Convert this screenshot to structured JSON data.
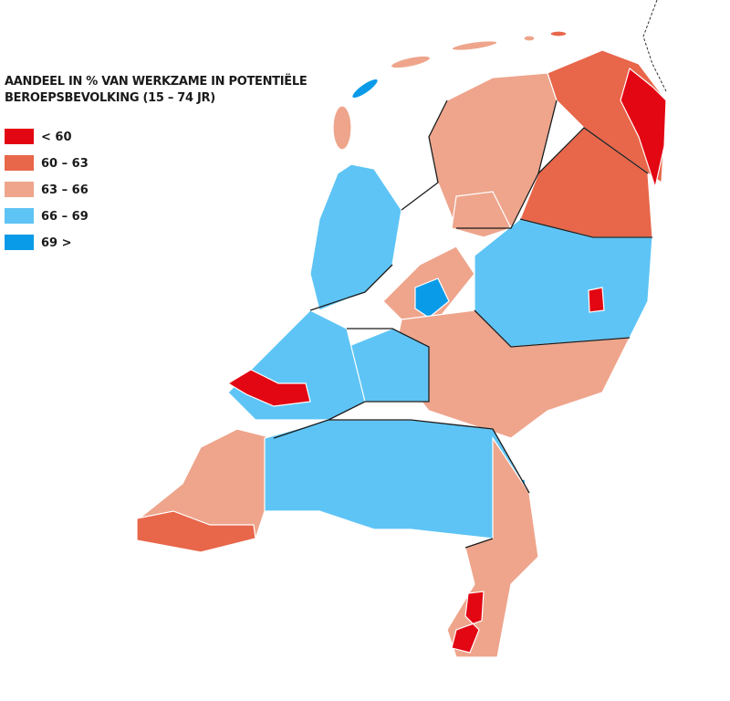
{
  "title_lines": [
    "AANDEEL IN % VAN WERKZAME IN POTENTIËLE",
    "BEROEPSBEVOLKING (15 – 74 JR)"
  ],
  "legend": [
    {
      "label": "< 60",
      "color": "#e30613"
    },
    {
      "label": "60 – 63",
      "color": "#e8664a"
    },
    {
      "label": "63 – 66",
      "color": "#eea58c"
    },
    {
      "label": "66 – 69",
      "color": "#5ec4f5"
    },
    {
      "label": "69 >",
      "color": "#0a9be8"
    }
  ]
}
